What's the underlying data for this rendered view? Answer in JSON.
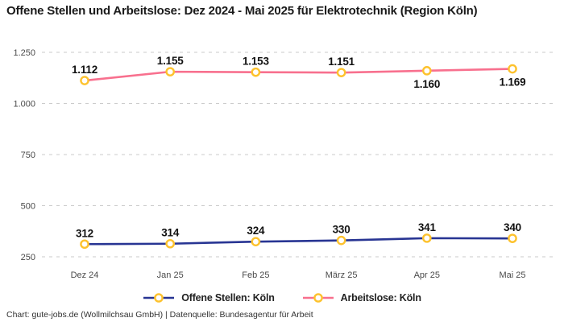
{
  "title": "Offene Stellen und Arbeitslose: Dez 2024 - Mai 2025 für Elektrotechnik (Region Köln)",
  "footer": "Chart: gute-jobs.de (Wollmilchsau GmbH) | Datenquelle: Bundesagentur für Arbeit",
  "colors": {
    "series_offene_stellen": "#283593",
    "series_arbeitslose": "#f8708e",
    "marker_ring": "#fdc22d",
    "marker_fill": "#ffffff",
    "gridline": "#cbcbcb",
    "tick_text": "#4a4a4a",
    "label_text": "#111111"
  },
  "chart_data": {
    "type": "line",
    "title": "Offene Stellen und Arbeitslose: Dez 2024 - Mai 2025 für Elektrotechnik (Region Köln)",
    "categories": [
      "Dez 24",
      "Jan 25",
      "Feb 25",
      "März 25",
      "Apr 25",
      "Mai 25"
    ],
    "series": [
      {
        "name": "Offene Stellen: Köln",
        "color": "#283593",
        "values": [
          312,
          314,
          324,
          330,
          341,
          340
        ],
        "labels": [
          "312",
          "314",
          "324",
          "330",
          "341",
          "340"
        ],
        "label_side": [
          "above",
          "above",
          "above",
          "above",
          "above",
          "above"
        ]
      },
      {
        "name": "Arbeitslose: Köln",
        "color": "#f8708e",
        "values": [
          1112,
          1155,
          1153,
          1151,
          1160,
          1169
        ],
        "labels": [
          "1.112",
          "1.155",
          "1.153",
          "1.151",
          "1.160",
          "1.169"
        ],
        "label_side": [
          "above",
          "above",
          "above",
          "above",
          "below",
          "below"
        ]
      }
    ],
    "ylim": [
      250,
      1250
    ],
    "yticks": [
      250,
      500,
      750,
      1000,
      1250
    ],
    "ytick_labels": [
      "250",
      "500",
      "750",
      "1.000",
      "1.250"
    ],
    "xlabel": "",
    "ylabel": "",
    "grid": "horizontal-dashed",
    "legend_position": "bottom",
    "marker": {
      "shape": "circle",
      "fill": "#ffffff",
      "ring": "#fdc22d"
    }
  },
  "legend": {
    "items": [
      {
        "label": "Offene Stellen: Köln",
        "color": "#283593"
      },
      {
        "label": "Arbeitslose: Köln",
        "color": "#f8708e"
      }
    ]
  }
}
